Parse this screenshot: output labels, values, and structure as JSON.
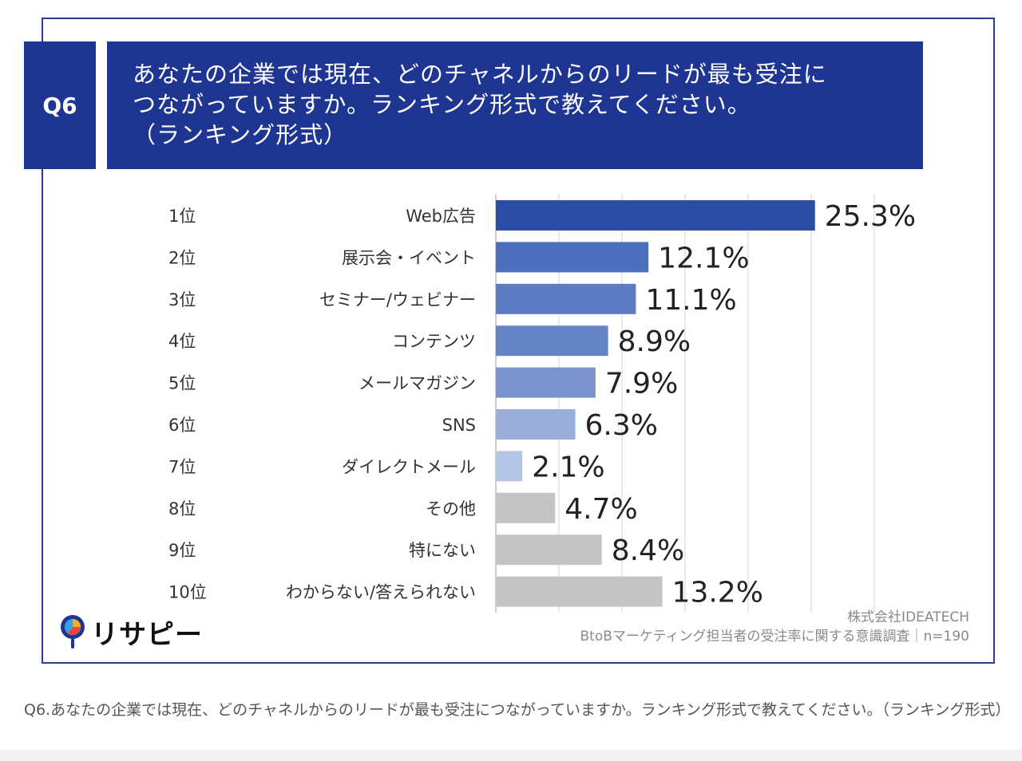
{
  "question": {
    "label": "Q6",
    "title_lines": [
      "あなたの企業では現在、どのチャネルからのリードが最も受注に",
      "つながっていますか。ランキング形式で教えてください。",
      "（ランキング形式）"
    ]
  },
  "colors": {
    "header_bg": "#1e3591",
    "frame_border": "#2a3e8c",
    "gray_bar": "#c4c4c4",
    "blue_bars": [
      "#2c4da6",
      "#4e6fbd",
      "#5d7cc3",
      "#6584c6",
      "#7a93cd",
      "#9aaedb",
      "#b4c5e6"
    ]
  },
  "chart_data": {
    "type": "bar",
    "orientation": "horizontal",
    "ranks": [
      "1位",
      "2位",
      "3位",
      "4位",
      "5位",
      "6位",
      "7位",
      "8位",
      "9位",
      "10位"
    ],
    "categories": [
      "Web広告",
      "展示会・イベント",
      "セミナー/ウェビナー",
      "コンテンツ",
      "メールマガジン",
      "SNS",
      "ダイレクトメール",
      "その他",
      "特にない",
      "わからない/答えられない"
    ],
    "values": [
      25.3,
      12.1,
      11.1,
      8.9,
      7.9,
      6.3,
      2.1,
      4.7,
      8.4,
      13.2
    ],
    "value_labels": [
      "25.3%",
      "12.1%",
      "11.1%",
      "8.9%",
      "7.9%",
      "6.3%",
      "2.1%",
      "4.7%",
      "8.4%",
      "13.2%"
    ],
    "xlim": [
      0,
      30
    ],
    "grid": true,
    "unit": "%"
  },
  "brand": {
    "logo_text": "リサピー"
  },
  "source": {
    "company": "株式会社IDEATECH",
    "survey": "BtoBマーケティング担当者の受注率に関する意識調査｜n=190"
  },
  "caption": "Q6.あなたの企業では現在、どのチャネルからのリードが最も受注につながっていますか。ランキング形式で教えてください。（ランキング形式）"
}
